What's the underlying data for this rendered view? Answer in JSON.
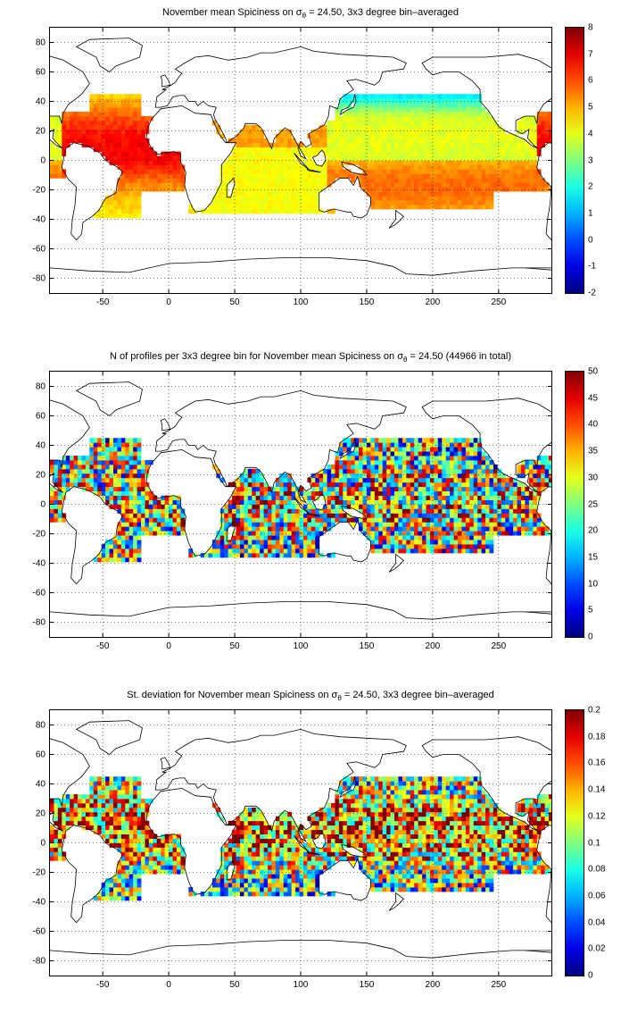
{
  "panels": [
    {
      "id": "spiciness",
      "title_pre": "November mean Spiciness on ",
      "title_sigma": "σ",
      "title_sub": "θ",
      "title_post": " = 24.50, 3x3 degree bin–averaged",
      "colorbar_ticks": [
        "8",
        "7",
        "6",
        "5",
        "4",
        "3",
        "2",
        "1",
        "0",
        "-1",
        "-2"
      ],
      "clim": [
        -2,
        8
      ]
    },
    {
      "id": "nprofiles",
      "title_pre": "N of profiles per 3x3 degree bin for November mean Spiciness on ",
      "title_sigma": "σ",
      "title_sub": "θ",
      "title_post": " = 24.50 (44966 in total)",
      "colorbar_ticks": [
        "50",
        "45",
        "40",
        "35",
        "30",
        "25",
        "20",
        "15",
        "10",
        "5",
        "0"
      ],
      "clim": [
        0,
        50
      ]
    },
    {
      "id": "stdev",
      "title_pre": "St. deviation for November mean Spiciness on ",
      "title_sigma": "σ",
      "title_sub": "θ",
      "title_post": " = 24.50, 3x3 degree bin–averaged",
      "colorbar_ticks": [
        "0.2",
        "0.18",
        "0.16",
        "0.14",
        "0.12",
        "0.1",
        "0.08",
        "0.06",
        "0.04",
        "0.02",
        "0"
      ],
      "clim": [
        0,
        0.2
      ]
    }
  ],
  "axes": {
    "x_ticks": [
      "-50",
      "0",
      "50",
      "100",
      "150",
      "200",
      "250"
    ],
    "x_values": [
      -50,
      0,
      50,
      100,
      150,
      200,
      250
    ],
    "x_range": [
      -90,
      290
    ],
    "y_ticks": [
      "80",
      "60",
      "40",
      "20",
      "0",
      "-20",
      "-40",
      "-60",
      "-80"
    ],
    "y_values": [
      80,
      60,
      40,
      20,
      0,
      -20,
      -40,
      -60,
      -80
    ],
    "y_range": [
      -90,
      90
    ]
  },
  "colormap": "jet"
}
